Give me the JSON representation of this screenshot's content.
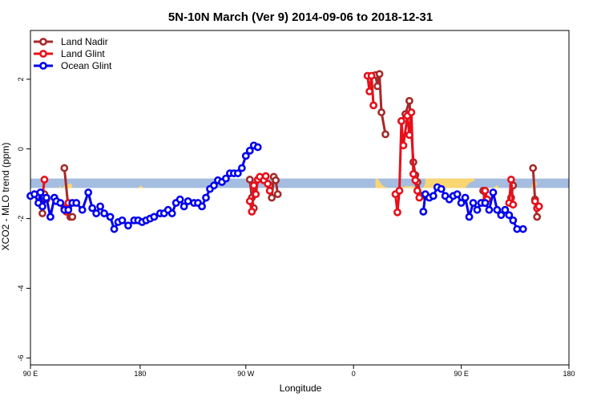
{
  "chart_data": {
    "type": "line",
    "title": "5N-10N March (Ver 9)   2014-09-06 to 2018-12-31",
    "xlabel": "Longitude",
    "ylabel": "XCO2 - MLO trend (ppm)",
    "xlim": [
      -90,
      180
    ],
    "ylim": [
      -6.2,
      3.4
    ],
    "x_ticks": [
      -90,
      -35,
      18,
      72,
      126,
      180
    ],
    "x_tick_labels": [
      "90 E",
      "180",
      "90 W",
      "0",
      "90 E",
      "180"
    ],
    "y_ticks": [
      -6,
      -4,
      -2,
      0,
      2
    ],
    "y_tick_labels": [
      "-6",
      "-4",
      "-2",
      "0",
      "2"
    ],
    "grid": false,
    "legend_position": "top-left",
    "band": {
      "color": "#a4bde0",
      "y_range": [
        -1.12,
        -0.85
      ],
      "x_range": [
        -90,
        180
      ],
      "land_color": "#fad672",
      "land_segments": [
        [
          [
            -74,
            -1.12
          ],
          [
            -73,
            -1.06
          ],
          [
            -71,
            -1.02
          ],
          [
            -70,
            -0.98
          ],
          [
            -69,
            -1.05
          ],
          [
            -69,
            -1.12
          ]
        ],
        [
          [
            -75.5,
            -1.12
          ],
          [
            -75.5,
            -1.04
          ],
          [
            -74.5,
            -1.12
          ]
        ],
        [
          [
            -36,
            -1.12
          ],
          [
            -35,
            -1.05
          ],
          [
            -33,
            -1.12
          ]
        ],
        [
          [
            83,
            -0.85
          ],
          [
            84,
            -0.85
          ],
          [
            85,
            -0.92
          ],
          [
            86,
            -1.02
          ],
          [
            88,
            -1.1
          ],
          [
            91,
            -1.12
          ],
          [
            95,
            -1.12
          ],
          [
            97,
            -1.08
          ],
          [
            101,
            -1.06
          ],
          [
            104,
            -1.12
          ],
          [
            107,
            -1.12
          ],
          [
            108,
            -0.98
          ],
          [
            108,
            -0.85
          ],
          [
            132,
            -0.85
          ],
          [
            133,
            -0.9
          ],
          [
            130,
            -0.98
          ],
          [
            128,
            -1.12
          ],
          [
            83,
            -1.12
          ]
        ],
        [
          [
            142,
            -1.12
          ],
          [
            144,
            -1.04
          ],
          [
            145,
            -1.12
          ]
        ],
        [
          [
            150,
            -1.12
          ],
          [
            150,
            -1.04
          ],
          [
            151,
            -1.12
          ]
        ],
        [
          [
            162,
            -0.95
          ],
          [
            163,
            -0.9
          ],
          [
            164,
            -1.0
          ],
          [
            163,
            -1.12
          ],
          [
            161,
            -1.12
          ]
        ],
        [
          [
            184,
            -1.12
          ],
          [
            185,
            -0.92
          ],
          [
            186,
            -1.12
          ]
        ]
      ]
    },
    "series": [
      {
        "name": "Land Nadir",
        "color": "#a52a2a",
        "segments": [
          [
            [
              -84,
              -1.85
            ],
            [
              -83,
              -1.3
            ],
            [
              -82,
              -1.45
            ]
          ],
          [
            [
              -73,
              -0.55
            ],
            [
              -71,
              -1.7
            ],
            [
              -70,
              -1.95
            ],
            [
              -69,
              -1.95
            ]
          ],
          [
            [
              20,
              -0.88
            ],
            [
              21,
              -1.4
            ],
            [
              22,
              -1.7
            ]
          ],
          [
            [
              30,
              -1.05
            ],
            [
              31,
              -1.4
            ],
            [
              32,
              -0.8
            ],
            [
              33,
              -0.9
            ],
            [
              34,
              -1.3
            ]
          ],
          [
            [
              83,
              2.12
            ],
            [
              84,
              1.8
            ],
            [
              85,
              2.15
            ],
            [
              86,
              1.05
            ],
            [
              88,
              0.42
            ]
          ],
          [
            [
              96,
              0.8
            ],
            [
              98,
              1.0
            ],
            [
              100,
              1.38
            ],
            [
              102,
              -0.38
            ],
            [
              103,
              -0.75
            ],
            [
              104,
              -0.95
            ],
            [
              106,
              -1.35
            ]
          ],
          [
            [
              137,
              -1.2
            ],
            [
              138,
              -1.55
            ]
          ],
          [
            [
              151,
              -1.4
            ],
            [
              152,
              -1.05
            ]
          ],
          [
            [
              162,
              -0.55
            ],
            [
              163,
              -1.45
            ],
            [
              164,
              -1.95
            ]
          ]
        ]
      },
      {
        "name": "Land Glint",
        "color": "#e8101a",
        "segments": [
          [
            [
              -85,
              -1.55
            ],
            [
              -84,
              -1.4
            ],
            [
              -83,
              -0.88
            ]
          ],
          [
            [
              -73,
              -1.7
            ],
            [
              -72,
              -1.8
            ],
            [
              -71,
              -1.55
            ]
          ],
          [
            [
              20,
              -1.5
            ],
            [
              21,
              -1.8
            ],
            [
              22,
              -1.05
            ],
            [
              23,
              -1.3
            ],
            [
              24,
              -0.88
            ],
            [
              25,
              -0.8
            ],
            [
              27,
              -0.9
            ],
            [
              28,
              -0.78
            ],
            [
              29,
              -1.0
            ],
            [
              30,
              -1.2
            ]
          ],
          [
            [
              79,
              2.1
            ],
            [
              80,
              1.65
            ],
            [
              81,
              2.1
            ],
            [
              82,
              1.25
            ]
          ],
          [
            [
              93,
              -1.3
            ],
            [
              94,
              -1.82
            ],
            [
              95,
              -1.2
            ],
            [
              96,
              0.8
            ],
            [
              97,
              0.1
            ],
            [
              99,
              0.95
            ],
            [
              100,
              0.4
            ],
            [
              101,
              1.05
            ],
            [
              102,
              -0.72
            ],
            [
              103,
              -0.9
            ],
            [
              104,
              -1.2
            ],
            [
              105,
              -1.4
            ]
          ],
          [
            [
              137,
              -1.55
            ],
            [
              138,
              -1.2
            ],
            [
              139,
              -1.45
            ]
          ],
          [
            [
              150,
              -1.55
            ],
            [
              151,
              -0.88
            ],
            [
              152,
              -1.6
            ]
          ],
          [
            [
              163,
              -1.5
            ],
            [
              164,
              -1.7
            ],
            [
              165,
              -1.65
            ]
          ]
        ]
      },
      {
        "name": "Ocean Glint",
        "color": "#0000ee",
        "segments": [
          [
            [
              -90,
              -1.35
            ],
            [
              -88,
              -1.3
            ],
            [
              -86,
              -1.55
            ],
            [
              -85,
              -1.25
            ],
            [
              -84,
              -1.65
            ],
            [
              -82,
              -1.4
            ],
            [
              -80,
              -1.95
            ],
            [
              -78,
              -1.4
            ],
            [
              -77,
              -1.5
            ],
            [
              -75,
              -1.55
            ],
            [
              -73,
              -1.75
            ],
            [
              -71,
              -1.75
            ],
            [
              -69,
              -1.55
            ],
            [
              -67,
              -1.55
            ],
            [
              -64,
              -1.75
            ],
            [
              -61,
              -1.25
            ],
            [
              -59,
              -1.7
            ],
            [
              -57,
              -1.85
            ],
            [
              -55,
              -1.65
            ],
            [
              -53,
              -1.85
            ],
            [
              -50,
              -1.95
            ],
            [
              -48,
              -2.3
            ],
            [
              -46,
              -2.1
            ],
            [
              -44,
              -2.05
            ],
            [
              -41,
              -2.2
            ],
            [
              -38,
              -2.05
            ],
            [
              -36,
              -2.05
            ],
            [
              -34,
              -2.1
            ],
            [
              -32,
              -2.05
            ],
            [
              -30,
              -2.0
            ],
            [
              -28,
              -1.95
            ],
            [
              -25,
              -1.85
            ],
            [
              -23,
              -1.85
            ],
            [
              -21,
              -1.75
            ],
            [
              -19,
              -1.85
            ],
            [
              -17,
              -1.55
            ],
            [
              -15,
              -1.45
            ],
            [
              -13,
              -1.65
            ],
            [
              -11,
              -1.5
            ],
            [
              -8,
              -1.55
            ],
            [
              -6,
              -1.55
            ],
            [
              -4,
              -1.65
            ],
            [
              -2,
              -1.4
            ],
            [
              0,
              -1.15
            ],
            [
              2,
              -1.05
            ],
            [
              4,
              -0.9
            ],
            [
              6,
              -0.95
            ],
            [
              8,
              -0.85
            ],
            [
              10,
              -0.7
            ],
            [
              12,
              -0.7
            ],
            [
              14,
              -0.7
            ],
            [
              16,
              -0.55
            ],
            [
              18,
              -0.2
            ],
            [
              20,
              -0.05
            ],
            [
              22,
              0.1
            ],
            [
              24,
              0.05
            ]
          ],
          [
            [
              107,
              -1.8
            ],
            [
              108,
              -1.3
            ],
            [
              110,
              -1.4
            ],
            [
              112,
              -1.35
            ],
            [
              114,
              -1.1
            ],
            [
              116,
              -1.15
            ],
            [
              118,
              -1.35
            ],
            [
              120,
              -1.45
            ],
            [
              122,
              -1.35
            ],
            [
              124,
              -1.3
            ],
            [
              126,
              -1.55
            ],
            [
              128,
              -1.4
            ],
            [
              130,
              -1.95
            ],
            [
              132,
              -1.55
            ],
            [
              134,
              -1.75
            ],
            [
              136,
              -1.55
            ],
            [
              138,
              -1.55
            ],
            [
              140,
              -1.75
            ],
            [
              142,
              -1.25
            ],
            [
              144,
              -1.75
            ],
            [
              146,
              -1.9
            ],
            [
              148,
              -1.75
            ],
            [
              150,
              -1.9
            ],
            [
              152,
              -2.05
            ],
            [
              154,
              -2.3
            ],
            [
              157,
              -2.3
            ]
          ]
        ]
      }
    ]
  }
}
